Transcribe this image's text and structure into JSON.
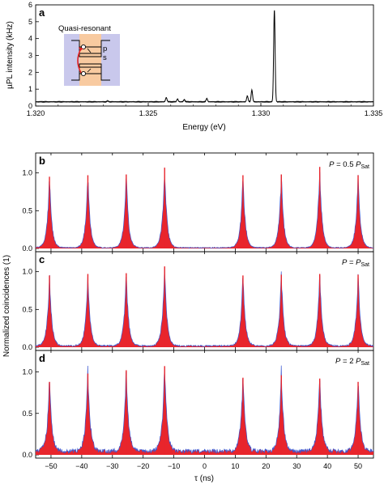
{
  "chart_data": [
    {
      "panel": "a",
      "type": "line",
      "xlabel": "Energy (eV)",
      "ylabel": "µPL intensity (kHz)",
      "xlim": [
        1.32,
        1.335
      ],
      "ylim": [
        0,
        6
      ],
      "xticks": [
        "1.320",
        "1.325",
        "1.330",
        "1.335"
      ],
      "xtick_values": [
        1.32,
        1.325,
        1.33,
        1.335
      ],
      "yticks": [
        "0",
        "1",
        "2",
        "3",
        "4",
        "5",
        "6"
      ],
      "ytick_values": [
        0,
        1,
        2,
        3,
        4,
        5,
        6
      ],
      "baseline": 0.25,
      "peaks": [
        {
          "x": 1.3232,
          "y": 0.3
        },
        {
          "x": 1.3258,
          "y": 0.5
        },
        {
          "x": 1.3263,
          "y": 0.42
        },
        {
          "x": 1.3266,
          "y": 0.38
        },
        {
          "x": 1.3276,
          "y": 0.45
        },
        {
          "x": 1.3294,
          "y": 0.6
        },
        {
          "x": 1.3296,
          "y": 0.95
        },
        {
          "x": 1.3306,
          "y": 5.7
        }
      ],
      "line_color": "#000000",
      "inset": {
        "label": "Quasi-resonant",
        "level_labels": [
          "p",
          "s"
        ],
        "background": "#c9c8ec",
        "well_color": "#f8caa0",
        "arrow_color": "#e22222"
      }
    },
    {
      "panel": "b",
      "type": "area",
      "annotation_var": "P",
      "annotation_eq": "= 0.5",
      "annotation_sym": "P",
      "annotation_sub": "Sat",
      "peaks": [
        {
          "x": -50.5,
          "y": 0.95
        },
        {
          "x": -38,
          "y": 0.97
        },
        {
          "x": -25.5,
          "y": 0.98
        },
        {
          "x": -13,
          "y": 1.07
        },
        {
          "x": 12.5,
          "y": 0.97
        },
        {
          "x": 25,
          "y": 0.98
        },
        {
          "x": 37.5,
          "y": 1.08
        },
        {
          "x": 50,
          "y": 0.97
        }
      ],
      "ylim": [
        0,
        1.2
      ],
      "yticks": [
        "0.0",
        "0.5",
        "1.0"
      ],
      "ytick_values": [
        0,
        0.5,
        1.0
      ],
      "noise_level": 0.012
    },
    {
      "panel": "c",
      "type": "area",
      "annotation_var": "P",
      "annotation_eq": "=",
      "annotation_sym": "P",
      "annotation_sub": "Sat",
      "peaks": [
        {
          "x": -50.5,
          "y": 0.95
        },
        {
          "x": -38,
          "y": 0.97
        },
        {
          "x": -25.5,
          "y": 0.98
        },
        {
          "x": -13,
          "y": 1.07
        },
        {
          "x": 12.5,
          "y": 0.95
        },
        {
          "x": 25,
          "y": 0.96
        },
        {
          "x": 37.5,
          "y": 0.97
        },
        {
          "x": 50,
          "y": 0.96
        }
      ],
      "ylim": [
        0,
        1.2
      ],
      "yticks": [
        "0.0",
        "0.5",
        "1.0"
      ],
      "ytick_values": [
        0,
        0.5,
        1.0
      ],
      "noise_level": 0.02
    },
    {
      "panel": "d",
      "type": "area",
      "annotation_var": "P",
      "annotation_eq": "= 2",
      "annotation_sym": "P",
      "annotation_sub": "Sat",
      "peaks": [
        {
          "x": -50.5,
          "y": 0.88
        },
        {
          "x": -38,
          "y": 0.98
        },
        {
          "x": -25.5,
          "y": 1.02
        },
        {
          "x": -13,
          "y": 1.07
        },
        {
          "x": 12.5,
          "y": 0.93
        },
        {
          "x": 25,
          "y": 0.96
        },
        {
          "x": 37.5,
          "y": 0.92
        },
        {
          "x": 50,
          "y": 0.88
        }
      ],
      "ylim": [
        0,
        1.2
      ],
      "yticks": [
        "0.0",
        "0.5",
        "1.0"
      ],
      "ytick_values": [
        0,
        0.5,
        1.0
      ],
      "noise_level": 0.05
    }
  ],
  "shared_correlation_axes": {
    "xlabel": "τ (ns)",
    "ylabel": "Normalized coincidences (1)",
    "xlim": [
      -55,
      55
    ],
    "xticks": [
      "−50",
      "−40",
      "−30",
      "−20",
      "−10",
      "0",
      "10",
      "20",
      "30",
      "40",
      "50"
    ],
    "xtick_values": [
      -50,
      -40,
      -30,
      -20,
      -10,
      0,
      10,
      20,
      30,
      40,
      50
    ],
    "fill_color": "#e8252c",
    "edge_color": "#3546b0",
    "noise_color": "#3a56d0"
  }
}
